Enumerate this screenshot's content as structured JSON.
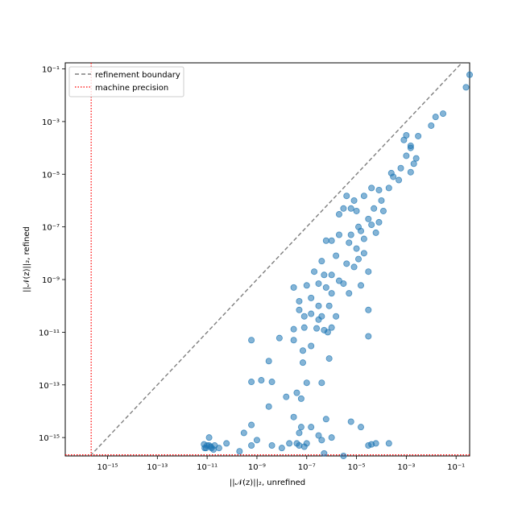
{
  "chart_data": {
    "type": "scatter",
    "title": "",
    "xlabel": "||𝒩(z)||₂, unrefined",
    "ylabel": "||𝒩(z)||₂, refined",
    "xscale": "log",
    "yscale": "log",
    "xlim": [
      2e-17,
      0.35
    ],
    "ylim": [
      2e-16,
      0.17
    ],
    "xticks": [
      {
        "value": 1e-15,
        "label": "10⁻¹⁵"
      },
      {
        "value": 1e-13,
        "label": "10⁻¹³"
      },
      {
        "value": 1e-11,
        "label": "10⁻¹¹"
      },
      {
        "value": 1e-09,
        "label": "10⁻⁹"
      },
      {
        "value": 1e-07,
        "label": "10⁻⁷"
      },
      {
        "value": 1e-05,
        "label": "10⁻⁵"
      },
      {
        "value": 0.001,
        "label": "10⁻³"
      },
      {
        "value": 0.1,
        "label": "10⁻¹"
      }
    ],
    "yticks": [
      {
        "value": 1e-15,
        "label": "10⁻¹⁵"
      },
      {
        "value": 1e-13,
        "label": "10⁻¹³"
      },
      {
        "value": 1e-11,
        "label": "10⁻¹¹"
      },
      {
        "value": 1e-09,
        "label": "10⁻⁹"
      },
      {
        "value": 1e-07,
        "label": "10⁻⁷"
      },
      {
        "value": 1e-05,
        "label": "10⁻⁵"
      },
      {
        "value": 0.001,
        "label": "10⁻³"
      },
      {
        "value": 0.1,
        "label": "10⁻¹"
      }
    ],
    "grid": false,
    "legend_position": "top-left",
    "legend": [
      {
        "label": "refinement boundary",
        "style": "dashed",
        "color": "#7f7f7f"
      },
      {
        "label": "machine precision",
        "style": "dotted",
        "color": "#ff0000"
      }
    ],
    "reference_lines": {
      "refinement_boundary": {
        "type": "identity y=x"
      },
      "machine_precision": {
        "value": 2.2e-16
      }
    },
    "series": [
      {
        "color": "#1f77b4",
        "points": [
          [
            0.35,
            0.06
          ],
          [
            0.25,
            0.02
          ],
          [
            0.03,
            0.002
          ],
          [
            0.015,
            0.0015
          ],
          [
            0.01,
            0.0007
          ],
          [
            0.003,
            0.00028
          ],
          [
            0.0015,
            0.00012
          ],
          [
            0.001,
            5e-05
          ],
          [
            0.0025,
            4e-05
          ],
          [
            0.0006,
            1.7e-05
          ],
          [
            0.002,
            2.5e-05
          ],
          [
            0.0015,
            0.0001
          ],
          [
            0.0008,
            0.0002
          ],
          [
            0.001,
            0.0003
          ],
          [
            0.0015,
            1.2e-05
          ],
          [
            0.0005,
            6e-06
          ],
          [
            0.00025,
            1.1e-05
          ],
          [
            0.0003,
            8e-06
          ],
          [
            0.0002,
            3e-06
          ],
          [
            0.0001,
            1e-06
          ],
          [
            8e-05,
            2.5e-06
          ],
          [
            0.00012,
            4e-07
          ],
          [
            5e-05,
            5e-07
          ],
          [
            3e-05,
            2e-07
          ],
          [
            8e-05,
            1.5e-07
          ],
          [
            6e-05,
            6e-08
          ],
          [
            4e-05,
            1.2e-07
          ],
          [
            2e-05,
            1.5e-06
          ],
          [
            4e-05,
            3e-06
          ],
          [
            1e-05,
            4e-07
          ],
          [
            6e-06,
            5e-07
          ],
          [
            1.2e-05,
            1e-07
          ],
          [
            8e-06,
            1e-06
          ],
          [
            4e-06,
            1.5e-06
          ],
          [
            3e-06,
            5e-07
          ],
          [
            2e-06,
            3e-07
          ],
          [
            1.5e-05,
            7e-08
          ],
          [
            5e-06,
            2.5e-08
          ],
          [
            2e-05,
            3.5e-08
          ],
          [
            1e-05,
            1.5e-08
          ],
          [
            6e-06,
            5e-08
          ],
          [
            1.2e-05,
            6e-09
          ],
          [
            2e-05,
            1e-08
          ],
          [
            3e-05,
            2e-09
          ],
          [
            1.5e-05,
            6e-10
          ],
          [
            8e-06,
            3e-09
          ],
          [
            4e-06,
            4e-09
          ],
          [
            2e-06,
            5e-08
          ],
          [
            1e-06,
            3e-08
          ],
          [
            1.5e-06,
            8e-09
          ],
          [
            6e-07,
            3e-08
          ],
          [
            1e-06,
            1.5e-09
          ],
          [
            4e-07,
            5e-09
          ],
          [
            2e-07,
            2e-09
          ],
          [
            3e-07,
            7e-10
          ],
          [
            6e-07,
            5e-10
          ],
          [
            1e-06,
            3e-10
          ],
          [
            2e-06,
            9e-10
          ],
          [
            3e-06,
            7e-10
          ],
          [
            5e-06,
            3e-10
          ],
          [
            5e-07,
            1.5e-09
          ],
          [
            1e-07,
            6e-10
          ],
          [
            1.5e-07,
            2e-10
          ],
          [
            3e-07,
            1e-10
          ],
          [
            8e-07,
            1e-10
          ],
          [
            1.5e-06,
            4e-11
          ],
          [
            4e-07,
            4e-11
          ],
          [
            1.5e-07,
            5e-11
          ],
          [
            8e-08,
            4e-11
          ],
          [
            5e-08,
            1.5e-10
          ],
          [
            3e-08,
            5e-10
          ],
          [
            5e-08,
            7e-11
          ],
          [
            3e-07,
            3e-11
          ],
          [
            1e-06,
            1.5e-11
          ],
          [
            5e-07,
            1.2e-11
          ],
          [
            2.5e-07,
            1.4e-11
          ],
          [
            8e-08,
            1.5e-11
          ],
          [
            3e-08,
            1.3e-11
          ],
          [
            7e-07,
            1e-11
          ],
          [
            3e-05,
            7e-11
          ],
          [
            3e-05,
            7e-12
          ],
          [
            3e-08,
            5e-12
          ],
          [
            8e-09,
            6e-12
          ],
          [
            1.5e-07,
            3e-12
          ],
          [
            7e-08,
            2e-12
          ],
          [
            8e-07,
            1e-12
          ],
          [
            7e-08,
            7e-13
          ],
          [
            3e-09,
            8e-13
          ],
          [
            1.5e-09,
            1.5e-13
          ],
          [
            1e-07,
            1.2e-13
          ],
          [
            4e-07,
            1.2e-13
          ],
          [
            4e-08,
            5e-14
          ],
          [
            1.5e-08,
            3.5e-14
          ],
          [
            6e-10,
            5e-12
          ],
          [
            4e-09,
            1.3e-13
          ],
          [
            6e-08,
            3e-14
          ],
          [
            6e-10,
            1.3e-13
          ],
          [
            3e-09,
            1.5e-14
          ],
          [
            6e-08,
            2.5e-15
          ],
          [
            6e-10,
            3e-15
          ],
          [
            3e-08,
            6e-15
          ],
          [
            1.5e-07,
            2.5e-15
          ],
          [
            6e-07,
            5e-15
          ],
          [
            1.5e-05,
            2.5e-15
          ],
          [
            6e-06,
            4e-15
          ],
          [
            1e-06,
            1e-15
          ],
          [
            3e-07,
            1.2e-15
          ],
          [
            1e-07,
            6e-16
          ],
          [
            4e-08,
            6e-16
          ],
          [
            2e-08,
            6e-16
          ],
          [
            1e-08,
            4e-16
          ],
          [
            4e-09,
            5e-16
          ],
          [
            1e-09,
            8e-16
          ],
          [
            6e-10,
            5e-16
          ],
          [
            2e-10,
            3e-16
          ],
          [
            6e-11,
            6e-16
          ],
          [
            3e-11,
            4e-16
          ],
          [
            2e-11,
            5e-16
          ],
          [
            1.5e-11,
            4e-16
          ],
          [
            1e-11,
            5e-16
          ],
          [
            8e-12,
            4e-16
          ],
          [
            2e-11,
            1.2e-16
          ],
          [
            7.5e-12,
            5.5e-16
          ],
          [
            1.2e-11,
            5e-16
          ],
          [
            1.8e-11,
            3.5e-16
          ],
          [
            9e-12,
            4e-16
          ],
          [
            1.4e-11,
            4.5e-16
          ],
          [
            5e-08,
            5e-16
          ],
          [
            8e-08,
            4.5e-16
          ],
          [
            3e-05,
            5e-16
          ],
          [
            4e-05,
            5.5e-16
          ],
          [
            6e-05,
            6e-16
          ],
          [
            0.0002,
            6e-16
          ],
          [
            5e-07,
            2.5e-16
          ],
          [
            3e-06,
            2e-16
          ],
          [
            5e-08,
            1.5e-15
          ],
          [
            3e-10,
            1.5e-15
          ],
          [
            4e-07,
            8e-16
          ],
          [
            1.2e-11,
            1e-15
          ]
        ]
      }
    ]
  }
}
